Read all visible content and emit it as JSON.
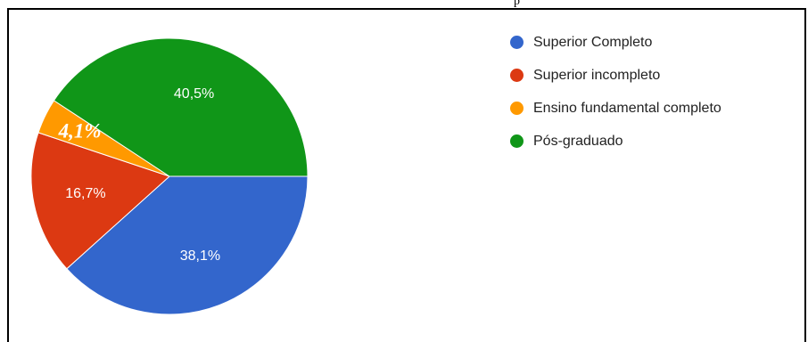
{
  "chart_data": {
    "type": "pie",
    "slices": [
      {
        "label": "Superior Completo",
        "value": 38.1,
        "display": "38,1%",
        "color": "#3366cc"
      },
      {
        "label": "Superior incompleto",
        "value": 16.7,
        "display": "16,7%",
        "color": "#dc3912"
      },
      {
        "label": "Ensino fundamental completo",
        "value": 4.1,
        "display": "4,1%",
        "color": "#ff9900"
      },
      {
        "label": "Pós-graduado",
        "value": 40.5,
        "display": "40,5%",
        "color": "#109618"
      }
    ],
    "legend_position": "right"
  },
  "top_stray_text": "p"
}
